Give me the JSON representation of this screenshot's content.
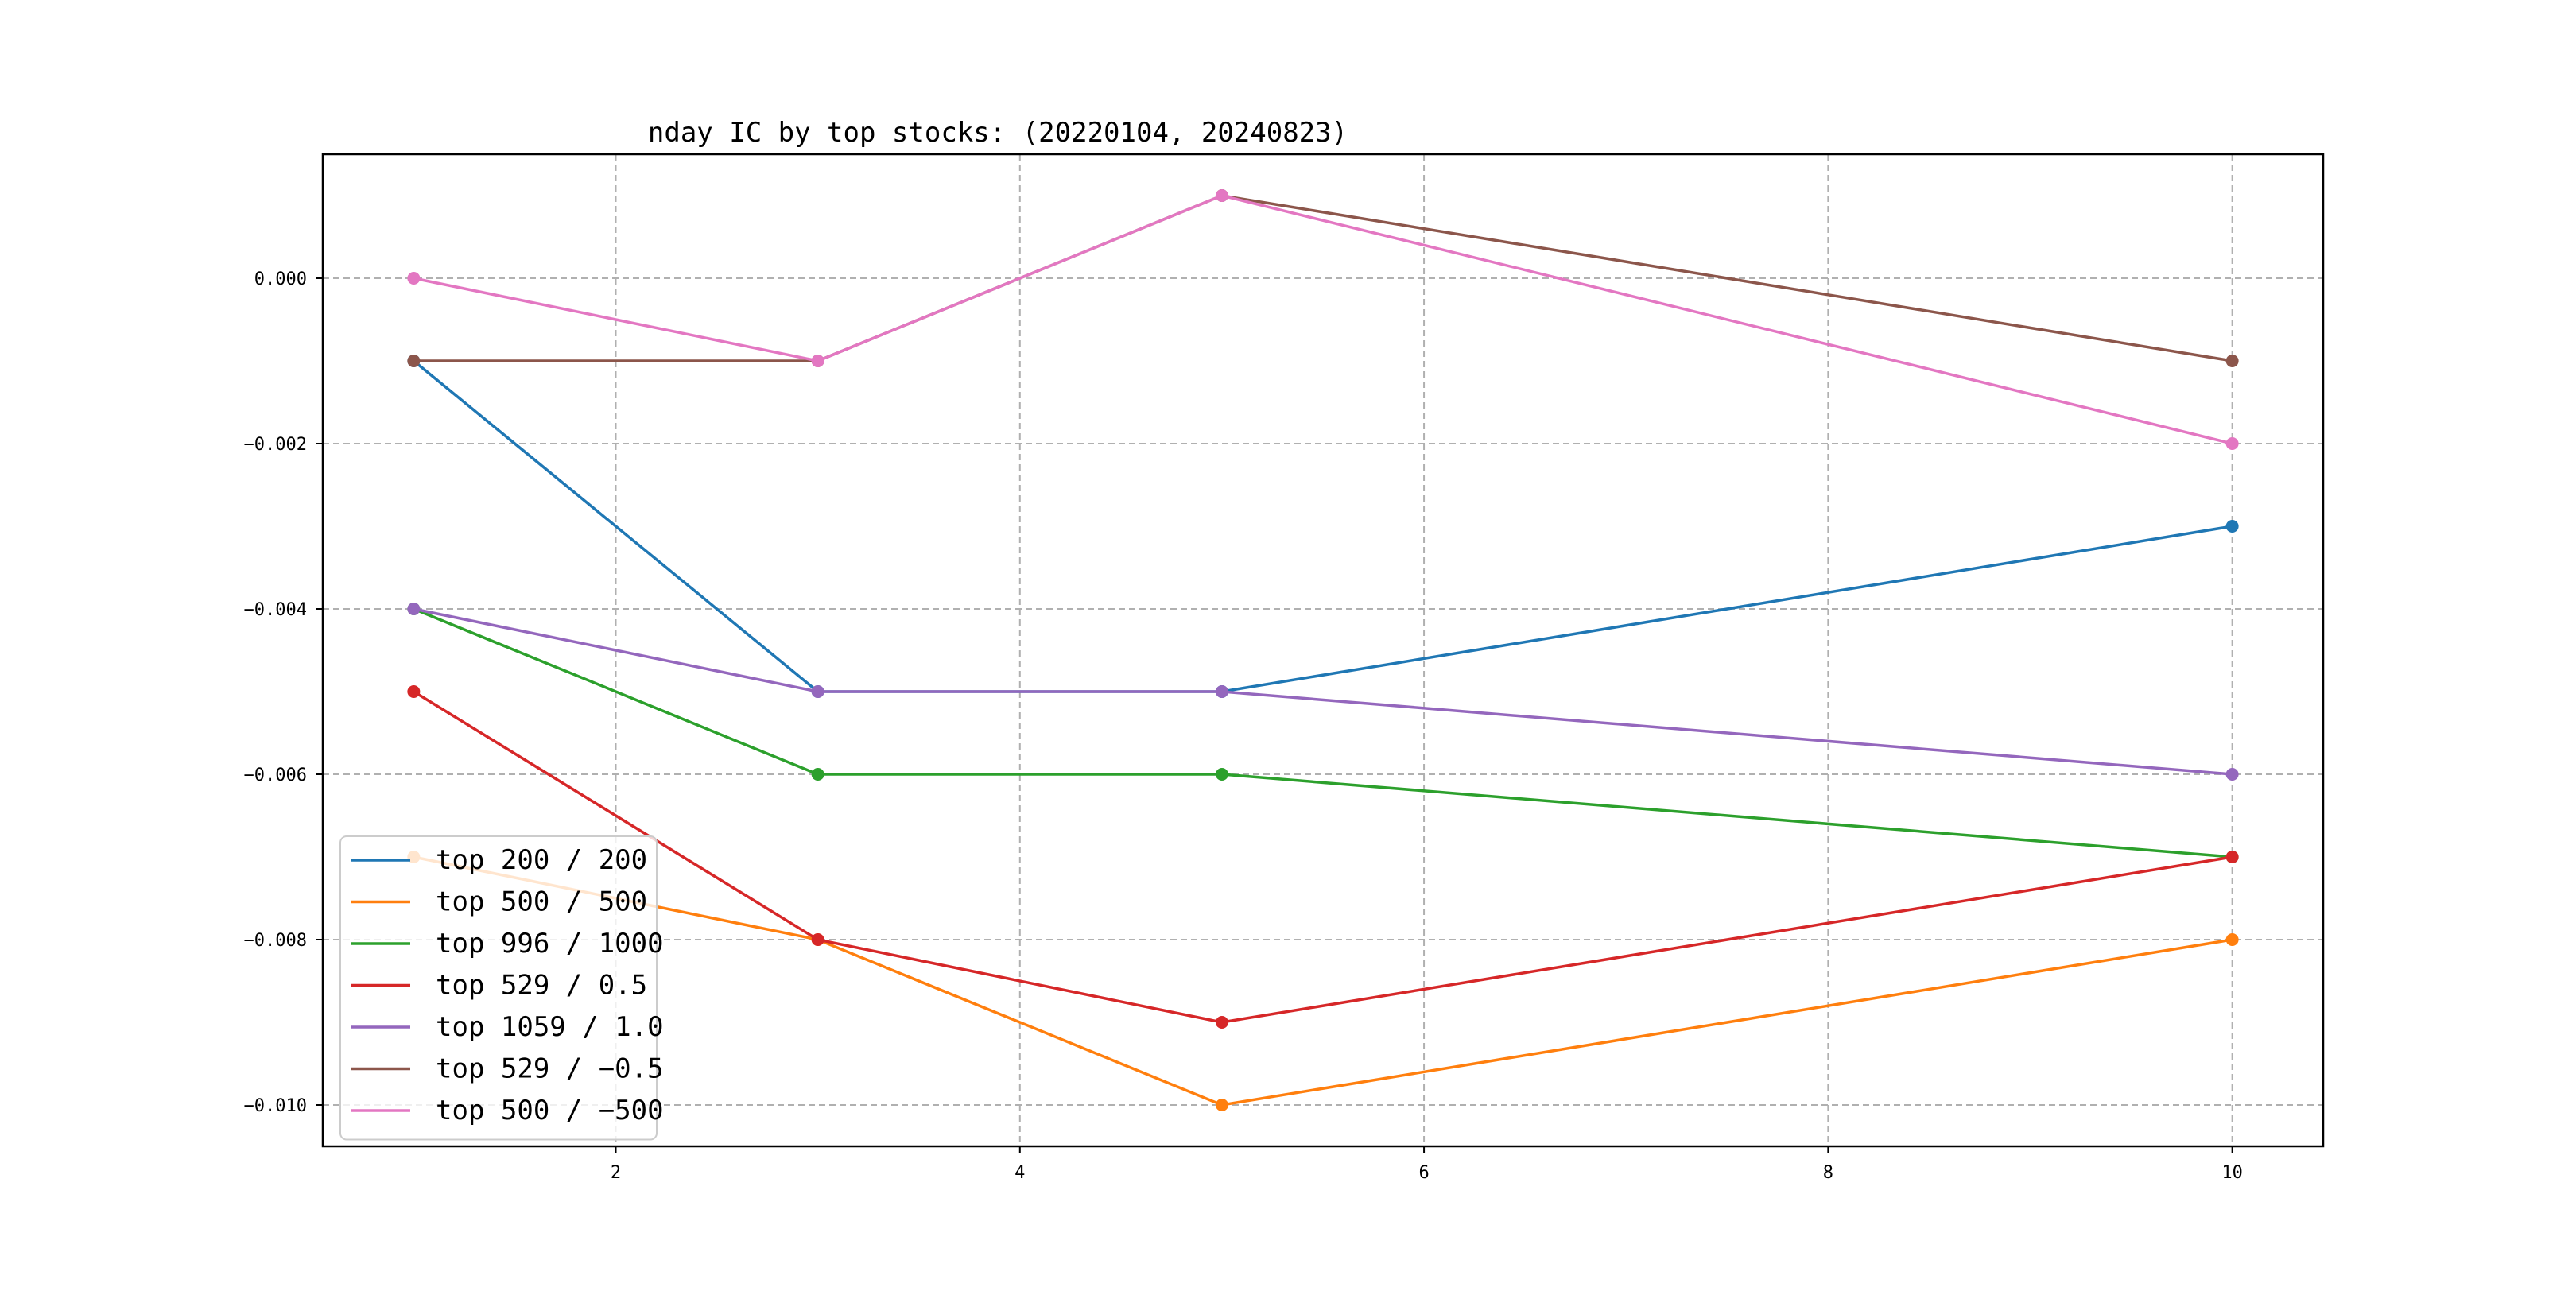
{
  "chart_data": {
    "type": "line",
    "title": "nday IC by top stocks: (20220104, 20240823)",
    "xlabel": "",
    "ylabel": "",
    "x": [
      1,
      3,
      5,
      10
    ],
    "xlim": [
      0.55,
      10.45
    ],
    "ylim": [
      -0.0105,
      0.0015
    ],
    "xticks": [
      2,
      4,
      6,
      8,
      10
    ],
    "xtick_labels": [
      "2",
      "4",
      "6",
      "8",
      "10"
    ],
    "yticks": [
      0.0,
      -0.002,
      -0.004,
      -0.006,
      -0.008,
      -0.01
    ],
    "ytick_labels": [
      "0.000",
      "−0.002",
      "−0.004",
      "−0.006",
      "−0.008",
      "−0.010"
    ],
    "grid": true,
    "legend_position": "lower-left",
    "series": [
      {
        "name": "top 200 / 200",
        "color": "#1f77b4",
        "values": [
          -0.001,
          -0.005,
          -0.005,
          -0.003
        ]
      },
      {
        "name": "top 500 / 500",
        "color": "#ff7f0e",
        "values": [
          -0.007,
          -0.008,
          -0.01,
          -0.008
        ]
      },
      {
        "name": "top 996 / 1000",
        "color": "#2ca02c",
        "values": [
          -0.004,
          -0.006,
          -0.006,
          -0.007
        ]
      },
      {
        "name": "top 529 / 0.5",
        "color": "#d62728",
        "values": [
          -0.005,
          -0.008,
          -0.009,
          -0.007
        ]
      },
      {
        "name": "top 1059 / 1.0",
        "color": "#9467bd",
        "values": [
          -0.004,
          -0.005,
          -0.005,
          -0.006
        ]
      },
      {
        "name": "top 529 / −0.5",
        "color": "#8c564b",
        "values": [
          -0.001,
          -0.001,
          0.001,
          -0.001
        ]
      },
      {
        "name": "top 500 / −500",
        "color": "#e377c2",
        "values": [
          0.0,
          -0.001,
          0.001,
          -0.002
        ]
      }
    ]
  }
}
